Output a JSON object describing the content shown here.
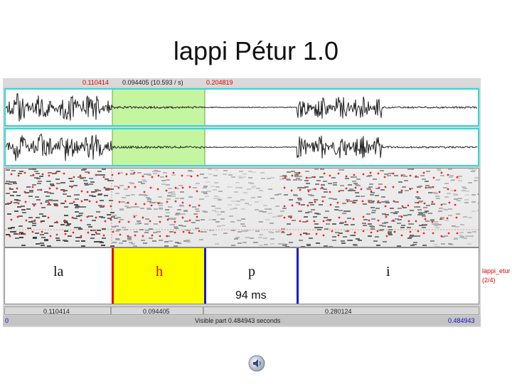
{
  "slide": {
    "title": "lappi Pétur 1.0"
  },
  "editor": {
    "top_bar": {
      "left_time": "0.110414",
      "selection": "0.094405 (10.593 / s)",
      "right_time": "0.204819"
    },
    "tier": {
      "intervals": [
        {
          "label": "la",
          "color": "#111111"
        },
        {
          "label": "h",
          "color": "#c81010"
        },
        {
          "label": "p",
          "color": "#111111"
        },
        {
          "label": "i",
          "color": "#111111"
        }
      ],
      "duration_label": "94 ms",
      "name": "lappi_etur",
      "count": "(2/4)"
    },
    "bottom_bar": {
      "seg1": "0.110414",
      "seg2": "0.094405",
      "seg3": "0.280124"
    },
    "status_bar": {
      "left": "0",
      "center": "Visible part 0.484943 seconds",
      "right": "0.484943"
    },
    "colors": {
      "selection": "#c4f5a0",
      "interval_highlight": "#ffff00",
      "boundary_red": "#e00000",
      "boundary_blue": "#1a1acc",
      "wave_border": "#33d6d6"
    }
  },
  "icons": {
    "speaker": "speaker-icon"
  }
}
